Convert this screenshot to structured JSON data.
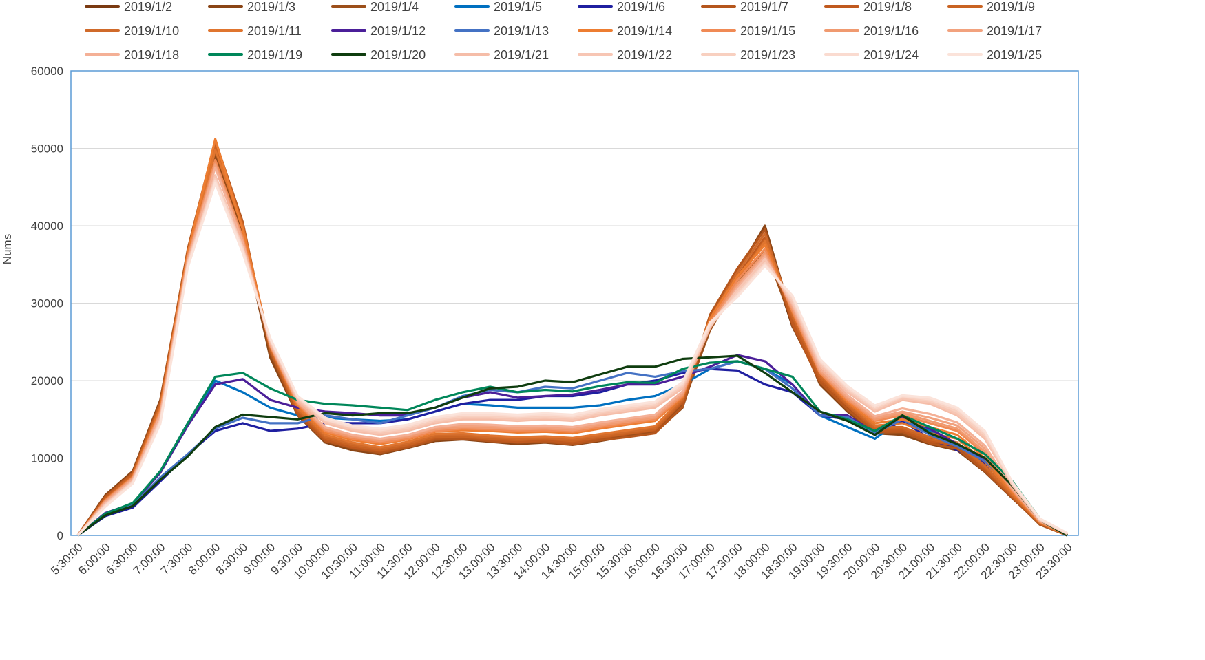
{
  "chart_data": {
    "type": "line",
    "title": "",
    "xlabel": "",
    "ylabel": "Nums",
    "ylim": [
      0,
      60000
    ],
    "yticks": [
      0,
      10000,
      20000,
      30000,
      40000,
      50000,
      60000
    ],
    "grid": true,
    "legend_position": "top",
    "x": [
      "5:30:00",
      "6:00:00",
      "6:30:00",
      "7:00:00",
      "7:30:00",
      "8:00:00",
      "8:30:00",
      "9:00:00",
      "9:30:00",
      "10:00:00",
      "10:30:00",
      "11:00:00",
      "11:30:00",
      "12:00:00",
      "12:30:00",
      "13:00:00",
      "13:30:00",
      "14:00:00",
      "14:30:00",
      "15:00:00",
      "15:30:00",
      "16:00:00",
      "16:30:00",
      "17:00:00",
      "17:30:00",
      "18:00:00",
      "18:30:00",
      "19:00:00",
      "19:30:00",
      "20:00:00",
      "20:30:00",
      "21:00:00",
      "21:30:00",
      "22:00:00",
      "22:30:00",
      "23:00:00",
      "23:30:00"
    ],
    "series": [
      {
        "name": "2019/1/2",
        "color": "#7a3a12",
        "values": [
          0,
          5000,
          8000,
          17000,
          36000,
          50000,
          40000,
          24000,
          16000,
          12500,
          11500,
          10800,
          11500,
          12500,
          12500,
          12300,
          12200,
          12300,
          12000,
          12500,
          13000,
          13500,
          17000,
          27000,
          33000,
          38000,
          27000,
          20000,
          16500,
          13500,
          13500,
          12000,
          11500,
          8500,
          5000,
          1500,
          0
        ]
      },
      {
        "name": "2019/1/3",
        "color": "#8a4516",
        "values": [
          0,
          5200,
          8300,
          17500,
          36500,
          49000,
          39000,
          23000,
          15500,
          12000,
          11000,
          10500,
          11300,
          12200,
          12400,
          12100,
          11800,
          12000,
          11700,
          12200,
          12800,
          13300,
          16500,
          27500,
          34000,
          40000,
          28000,
          19500,
          16000,
          13200,
          13000,
          11800,
          11000,
          8200,
          4800,
          1500,
          0
        ]
      },
      {
        "name": "2019/1/4",
        "color": "#9c4f1a",
        "values": [
          0,
          4800,
          7800,
          16800,
          35500,
          49500,
          39500,
          23500,
          15800,
          12300,
          11200,
          10600,
          11400,
          12300,
          12600,
          12400,
          12000,
          12200,
          11900,
          12400,
          12900,
          13400,
          16800,
          26500,
          32500,
          37000,
          27500,
          19800,
          16200,
          13300,
          13200,
          12100,
          11300,
          8400,
          4900,
          1400,
          0
        ]
      },
      {
        "name": "2019/1/5",
        "color": "#0070c0",
        "values": [
          0,
          2700,
          4100,
          8200,
          14500,
          20000,
          18500,
          16500,
          15500,
          15200,
          15000,
          14800,
          15000,
          16000,
          17000,
          16800,
          16500,
          16500,
          16500,
          16800,
          17500,
          18000,
          19500,
          21500,
          22500,
          21500,
          19500,
          15500,
          14000,
          12500,
          15000,
          13500,
          11500,
          9500,
          6500,
          2000,
          0
        ]
      },
      {
        "name": "2019/1/6",
        "color": "#1f1fa0",
        "values": [
          0,
          2500,
          3600,
          7000,
          10500,
          13500,
          14500,
          13500,
          13800,
          14500,
          14500,
          14500,
          15000,
          16000,
          17000,
          17500,
          17500,
          18000,
          18000,
          18500,
          19500,
          20000,
          21000,
          21500,
          21300,
          19500,
          18500,
          15500,
          15000,
          13000,
          14800,
          12500,
          11000,
          9300,
          6000,
          2000,
          0
        ]
      },
      {
        "name": "2019/1/7",
        "color": "#b5561c",
        "values": [
          0,
          5000,
          8100,
          17200,
          37000,
          51000,
          40500,
          23800,
          15600,
          12200,
          11300,
          10700,
          11400,
          12400,
          12500,
          12200,
          12000,
          12100,
          11800,
          12300,
          12700,
          13200,
          16600,
          28500,
          34500,
          39500,
          27200,
          19800,
          16300,
          13300,
          13400,
          11900,
          11200,
          8300,
          4900,
          1500,
          0
        ]
      },
      {
        "name": "2019/1/8",
        "color": "#c0591e",
        "values": [
          0,
          4900,
          8000,
          17000,
          36000,
          50500,
          40000,
          24200,
          16000,
          12400,
          11400,
          10900,
          11600,
          12600,
          12700,
          12400,
          12100,
          12300,
          12000,
          12600,
          13100,
          13600,
          17200,
          27800,
          33500,
          38500,
          27500,
          20200,
          16700,
          13600,
          13600,
          12200,
          11600,
          8600,
          5000,
          1500,
          0
        ]
      },
      {
        "name": "2019/1/9",
        "color": "#c96322",
        "values": [
          0,
          4700,
          7900,
          16900,
          36200,
          50000,
          40200,
          24000,
          16200,
          12600,
          11600,
          11000,
          11700,
          12700,
          12800,
          12500,
          12300,
          12500,
          12200,
          12700,
          13200,
          13700,
          17400,
          27300,
          33200,
          38200,
          28200,
          20500,
          16800,
          13800,
          13800,
          12400,
          11800,
          8800,
          5100,
          1600,
          0
        ]
      },
      {
        "name": "2019/1/10",
        "color": "#d06a2a",
        "values": [
          0,
          4600,
          7700,
          16600,
          36000,
          51000,
          40000,
          24300,
          16300,
          12800,
          11800,
          11200,
          11900,
          12900,
          13000,
          12700,
          12500,
          12600,
          12400,
          12900,
          13400,
          13900,
          17600,
          28000,
          34000,
          39000,
          28500,
          20800,
          17000,
          14000,
          14000,
          12700,
          12000,
          9000,
          5200,
          1600,
          0
        ]
      },
      {
        "name": "2019/1/11",
        "color": "#e0752f",
        "values": [
          0,
          4600,
          7600,
          16500,
          35800,
          49800,
          39800,
          24500,
          16500,
          13000,
          12000,
          11400,
          12100,
          13100,
          13200,
          12900,
          12700,
          12800,
          12600,
          13100,
          13600,
          14100,
          17800,
          27600,
          33000,
          38000,
          28800,
          21000,
          17200,
          14200,
          14500,
          13200,
          12500,
          9500,
          5400,
          1700,
          50
        ]
      },
      {
        "name": "2019/1/12",
        "color": "#4b1f99",
        "values": [
          0,
          2900,
          4100,
          8100,
          14200,
          19500,
          20200,
          17500,
          16500,
          16000,
          15800,
          15500,
          15500,
          16500,
          17800,
          18500,
          17800,
          18000,
          18200,
          18800,
          19500,
          19500,
          20500,
          21800,
          23300,
          22500,
          19500,
          15500,
          15500,
          13300,
          15200,
          13800,
          11800,
          9800,
          6300,
          2000,
          0
        ]
      },
      {
        "name": "2019/1/13",
        "color": "#4472c4",
        "values": [
          0,
          2800,
          3900,
          7500,
          10500,
          13800,
          15200,
          14500,
          14500,
          15500,
          15000,
          14500,
          15500,
          16500,
          18000,
          18800,
          18500,
          19200,
          19000,
          20000,
          21000,
          20500,
          21200,
          21500,
          22500,
          21500,
          19000,
          15500,
          15300,
          13200,
          15000,
          13000,
          11500,
          9600,
          6300,
          2000,
          0
        ]
      },
      {
        "name": "2019/1/14",
        "color": "#ed7d31",
        "values": [
          0,
          4500,
          7500,
          16200,
          36500,
          51200,
          39500,
          24500,
          16800,
          13300,
          12300,
          11800,
          12400,
          13400,
          13600,
          13500,
          13300,
          13400,
          13200,
          13800,
          14300,
          14800,
          17900,
          28000,
          33500,
          37500,
          29000,
          21000,
          17300,
          14500,
          15000,
          14000,
          13000,
          10000,
          5600,
          1700,
          100
        ]
      },
      {
        "name": "2019/1/15",
        "color": "#f08a55",
        "values": [
          0,
          4500,
          7500,
          16000,
          36000,
          48500,
          38500,
          24500,
          17000,
          13500,
          12500,
          12000,
          12500,
          13500,
          13800,
          13700,
          13500,
          13600,
          13400,
          14000,
          14500,
          15000,
          18000,
          27500,
          33000,
          37000,
          29000,
          21000,
          17500,
          14800,
          15500,
          14500,
          13500,
          10500,
          5800,
          1800,
          100
        ]
      },
      {
        "name": "2019/1/16",
        "color": "#f09a70",
        "values": [
          0,
          4400,
          7400,
          15800,
          35800,
          48000,
          38200,
          24600,
          17100,
          13700,
          12700,
          12200,
          12700,
          13700,
          14000,
          13900,
          13700,
          13800,
          13600,
          14200,
          14700,
          15200,
          18200,
          27200,
          32500,
          36500,
          29300,
          21200,
          17700,
          15000,
          15800,
          14800,
          13800,
          10800,
          5900,
          1800,
          100
        ]
      },
      {
        "name": "2019/1/17",
        "color": "#f2a27e",
        "values": [
          0,
          4300,
          7300,
          15700,
          35600,
          47800,
          38000,
          24700,
          17200,
          13900,
          12900,
          12400,
          12900,
          13900,
          14200,
          14100,
          13900,
          14000,
          13800,
          14400,
          14900,
          15400,
          18400,
          27000,
          32200,
          36200,
          29500,
          21400,
          17900,
          15200,
          16000,
          15200,
          14200,
          11200,
          6000,
          1900,
          150
        ]
      },
      {
        "name": "2019/1/18",
        "color": "#f4b096",
        "values": [
          0,
          4200,
          7200,
          15500,
          35400,
          47500,
          37800,
          24800,
          17300,
          14000,
          13000,
          12500,
          13000,
          14000,
          14400,
          14300,
          14100,
          14200,
          14000,
          14600,
          15100,
          15600,
          18600,
          26800,
          32000,
          36000,
          29800,
          21600,
          18100,
          15400,
          16400,
          15700,
          14600,
          11600,
          6100,
          1900,
          150
        ]
      },
      {
        "name": "2019/1/19",
        "color": "#00875a",
        "values": [
          0,
          2800,
          4200,
          8300,
          14500,
          20500,
          21000,
          19000,
          17500,
          17000,
          16800,
          16500,
          16200,
          17500,
          18500,
          19200,
          18500,
          18800,
          18600,
          19300,
          19800,
          19700,
          21500,
          22300,
          22500,
          21500,
          20500,
          16000,
          15000,
          13500,
          15500,
          14000,
          12500,
          10500,
          7000,
          2200,
          0
        ]
      },
      {
        "name": "2019/1/20",
        "color": "#0f3d0f",
        "values": [
          0,
          2600,
          3800,
          7200,
          10200,
          14000,
          15600,
          15300,
          15000,
          15800,
          15500,
          15800,
          15800,
          16500,
          17800,
          19000,
          19200,
          20000,
          19800,
          20800,
          21800,
          21800,
          22800,
          23000,
          23200,
          21000,
          18500,
          16000,
          14800,
          13000,
          15500,
          13200,
          11800,
          10000,
          6400,
          2000,
          0
        ]
      },
      {
        "name": "2019/1/21",
        "color": "#f5bda8",
        "values": [
          0,
          4000,
          7000,
          15000,
          35000,
          46500,
          37000,
          25000,
          17500,
          14500,
          13500,
          13000,
          13500,
          14500,
          15000,
          15000,
          14800,
          15000,
          14800,
          15500,
          16000,
          16500,
          19000,
          27000,
          31500,
          35500,
          30000,
          22000,
          18500,
          16000,
          17500,
          17000,
          15500,
          12500,
          6500,
          2000,
          200
        ]
      },
      {
        "name": "2019/1/22",
        "color": "#f7c6b4",
        "values": [
          0,
          4000,
          7000,
          15000,
          35200,
          46300,
          37200,
          25200,
          17700,
          14700,
          13700,
          13200,
          13700,
          14700,
          15200,
          15200,
          15000,
          15200,
          15000,
          15700,
          16200,
          16700,
          19200,
          27200,
          31700,
          35700,
          30200,
          22200,
          18700,
          16200,
          17700,
          17200,
          15700,
          12700,
          6600,
          2000,
          200
        ]
      },
      {
        "name": "2019/1/23",
        "color": "#f8d0c0",
        "values": [
          0,
          3900,
          6900,
          14800,
          35000,
          46000,
          37000,
          25300,
          17800,
          14900,
          13900,
          13400,
          13900,
          14900,
          15400,
          15400,
          15200,
          15400,
          15200,
          15900,
          16400,
          16900,
          19400,
          27000,
          31300,
          35200,
          30500,
          22400,
          18900,
          16400,
          17900,
          17400,
          16000,
          13000,
          6700,
          2100,
          250
        ]
      },
      {
        "name": "2019/1/24",
        "color": "#fadbd0",
        "values": [
          0,
          3800,
          6800,
          14600,
          34800,
          45800,
          36800,
          25400,
          17900,
          15000,
          14000,
          13600,
          14100,
          15100,
          15600,
          15600,
          15400,
          15600,
          15400,
          16100,
          16600,
          17100,
          19600,
          27300,
          31000,
          35000,
          30800,
          22600,
          19100,
          16600,
          18000,
          17600,
          16300,
          13300,
          6800,
          2100,
          300
        ]
      },
      {
        "name": "2019/1/25",
        "color": "#fbe3da",
        "values": [
          0,
          3700,
          6700,
          14400,
          34600,
          45500,
          36500,
          25500,
          18000,
          15200,
          14200,
          13800,
          14300,
          15300,
          15800,
          15800,
          15600,
          15800,
          15600,
          16300,
          16800,
          17300,
          19800,
          27500,
          30800,
          34800,
          31000,
          22800,
          19300,
          16800,
          18100,
          17800,
          16500,
          13500,
          6900,
          2200,
          300
        ]
      }
    ]
  }
}
